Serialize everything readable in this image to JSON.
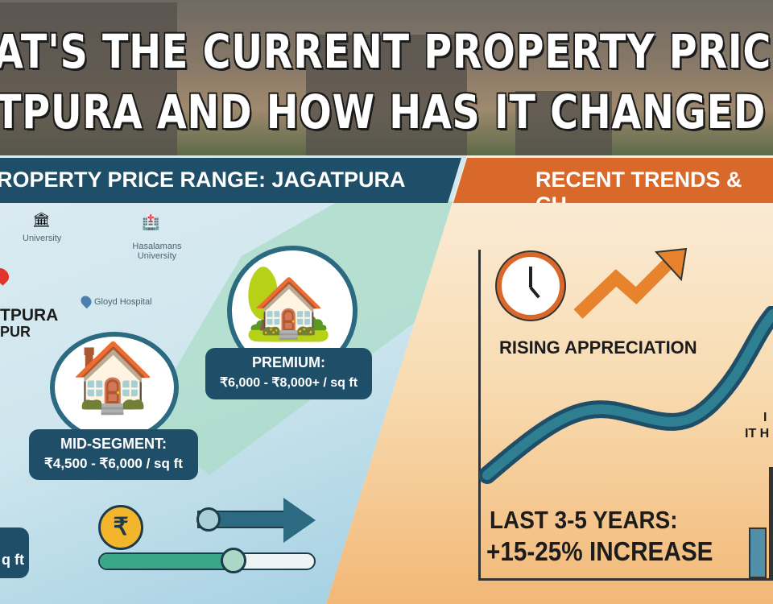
{
  "title": {
    "line1": "AT'S THE CURRENT PROPERTY PRICE RANG",
    "line2": "TPURA AND HOW HAS IT CHANGED RECEN"
  },
  "left_panel": {
    "header": "ROPERTY PRICE RANGE: JAGATPURA",
    "map": {
      "labels": [
        "University",
        "Hasalamans University",
        "Gloyd Hospital"
      ],
      "location": {
        "line1": "TPURA",
        "line2": "PUR"
      }
    },
    "tiers": [
      {
        "name": "PREMIUM:",
        "price": "₹6,000 - ₹8,000+ / sq ft"
      },
      {
        "name": "MID-SEGMENT:",
        "price": "₹4,500 - ₹6,000 / sq ft"
      },
      {
        "price": "q ft"
      }
    ]
  },
  "right_panel": {
    "header": "RECENT TRENDS & CH",
    "appreciation": "RISING APPRECIATION",
    "side_text": {
      "line1": "I",
      "line2": "IT H"
    },
    "increase": {
      "line1": "LAST 3-5 YEARS:",
      "line2": "+15-25% INCREASE"
    }
  },
  "colors": {
    "navy": "#1f4f68",
    "orange": "#d8692a",
    "teal": "#2b6a80"
  }
}
